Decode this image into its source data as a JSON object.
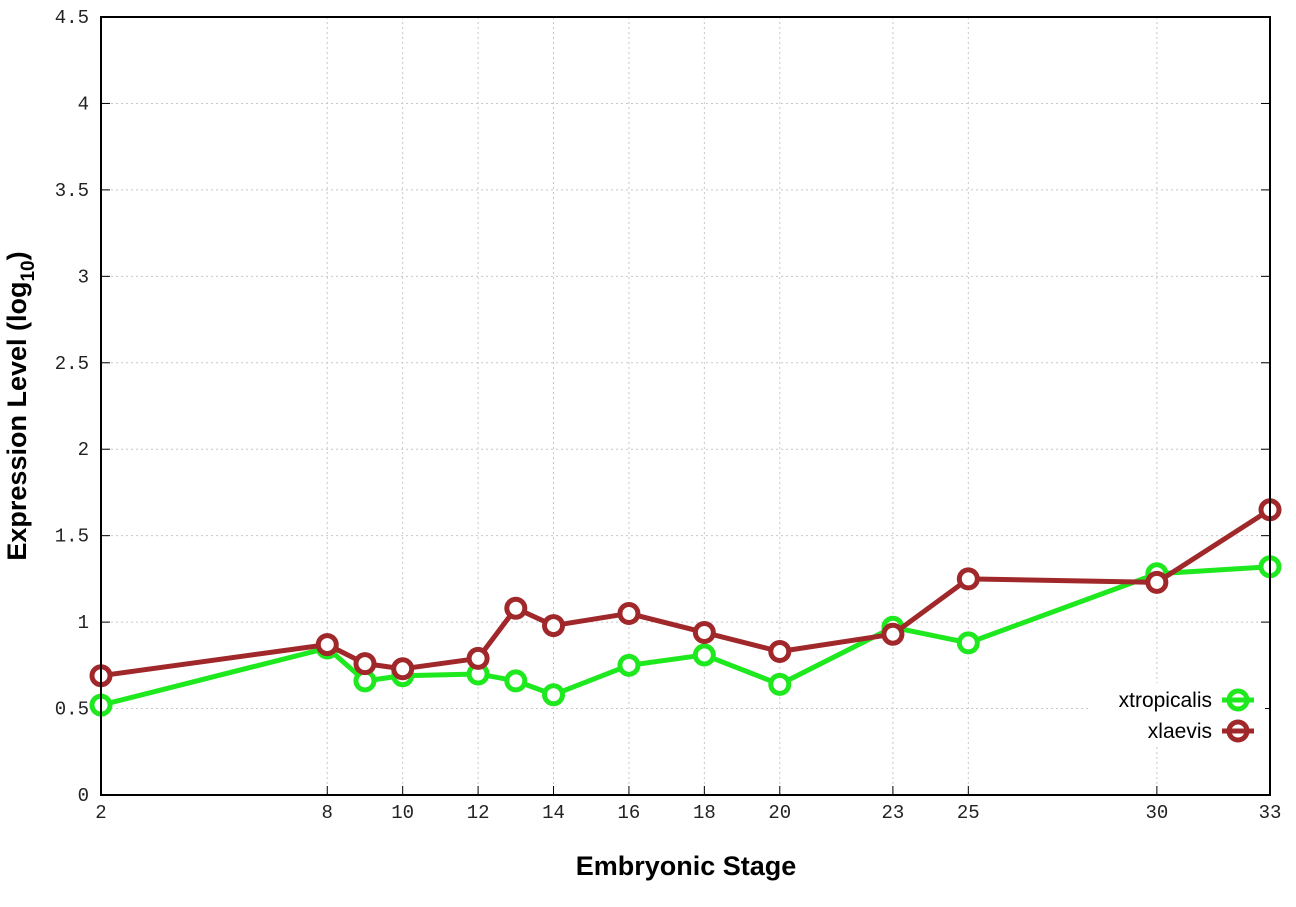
{
  "chart_data": {
    "type": "line",
    "title": "",
    "xlabel": "Embryonic Stage",
    "ylabel_main": "Expression Level (log",
    "ylabel_sub": "10",
    "ylabel_close": ")",
    "x": [
      2,
      8,
      9,
      10,
      12,
      13,
      14,
      16,
      18,
      20,
      23,
      25,
      30,
      33
    ],
    "x_ticks": [
      2,
      8,
      10,
      12,
      14,
      16,
      18,
      20,
      23,
      25,
      30,
      33
    ],
    "y_ticks": [
      "0",
      "0.5",
      "1",
      "1.5",
      "2",
      "2.5",
      "3",
      "3.5",
      "4",
      "4.5"
    ],
    "xlim": [
      2,
      33
    ],
    "ylim": [
      0,
      4.5
    ],
    "grid": true,
    "legend_position": "bottom-right",
    "series": [
      {
        "name": "xtropicalis",
        "color": "#1ee81e",
        "values": [
          0.52,
          0.85,
          0.66,
          0.69,
          0.7,
          0.66,
          0.58,
          0.75,
          0.81,
          0.64,
          0.97,
          0.88,
          1.28,
          1.32
        ]
      },
      {
        "name": "xlaevis",
        "color": "#a0282a",
        "values": [
          0.69,
          0.87,
          0.76,
          0.73,
          0.79,
          1.08,
          0.98,
          1.05,
          0.94,
          0.83,
          0.93,
          1.25,
          1.23,
          1.65
        ]
      }
    ]
  }
}
